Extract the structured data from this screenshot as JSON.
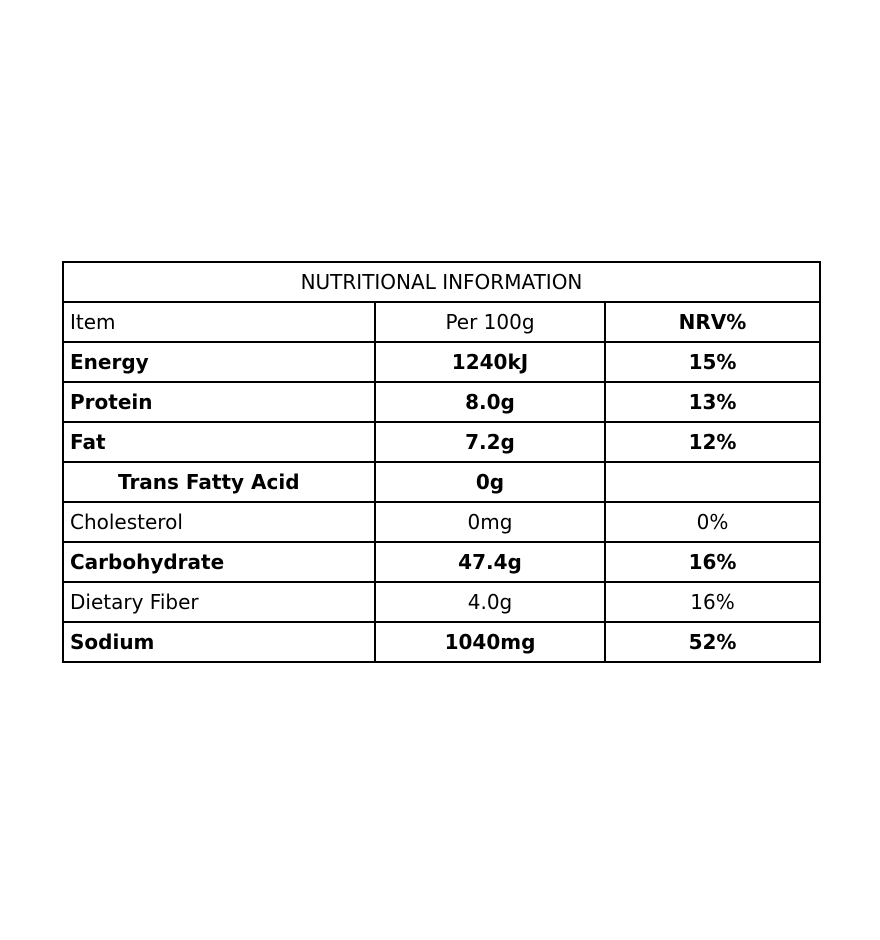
{
  "title": "NUTRITIONAL INFORMATION",
  "headers": {
    "item": "Item",
    "per100g": "Per 100g",
    "nrv": "NRV%"
  },
  "rows": [
    {
      "item": "Energy",
      "per100g": "1240kJ",
      "nrv": "15%",
      "bold": true
    },
    {
      "item": "Protein",
      "per100g": "8.0g",
      "nrv": "13%",
      "bold": true
    },
    {
      "item": "Fat",
      "per100g": "7.2g",
      "nrv": "12%",
      "bold": true
    },
    {
      "item": "Trans Fatty Acid",
      "per100g": "0g",
      "nrv": "",
      "bold": true,
      "indent": true
    },
    {
      "item": "Cholesterol",
      "per100g": "0mg",
      "nrv": "0%",
      "bold": false
    },
    {
      "item": "Carbohydrate",
      "per100g": "47.4g",
      "nrv": "16%",
      "bold": true
    },
    {
      "item": "Dietary Fiber",
      "per100g": "4.0g",
      "nrv": "16%",
      "bold": false
    },
    {
      "item": "Sodium",
      "per100g": "1040mg",
      "nrv": "52%",
      "bold": true
    }
  ]
}
